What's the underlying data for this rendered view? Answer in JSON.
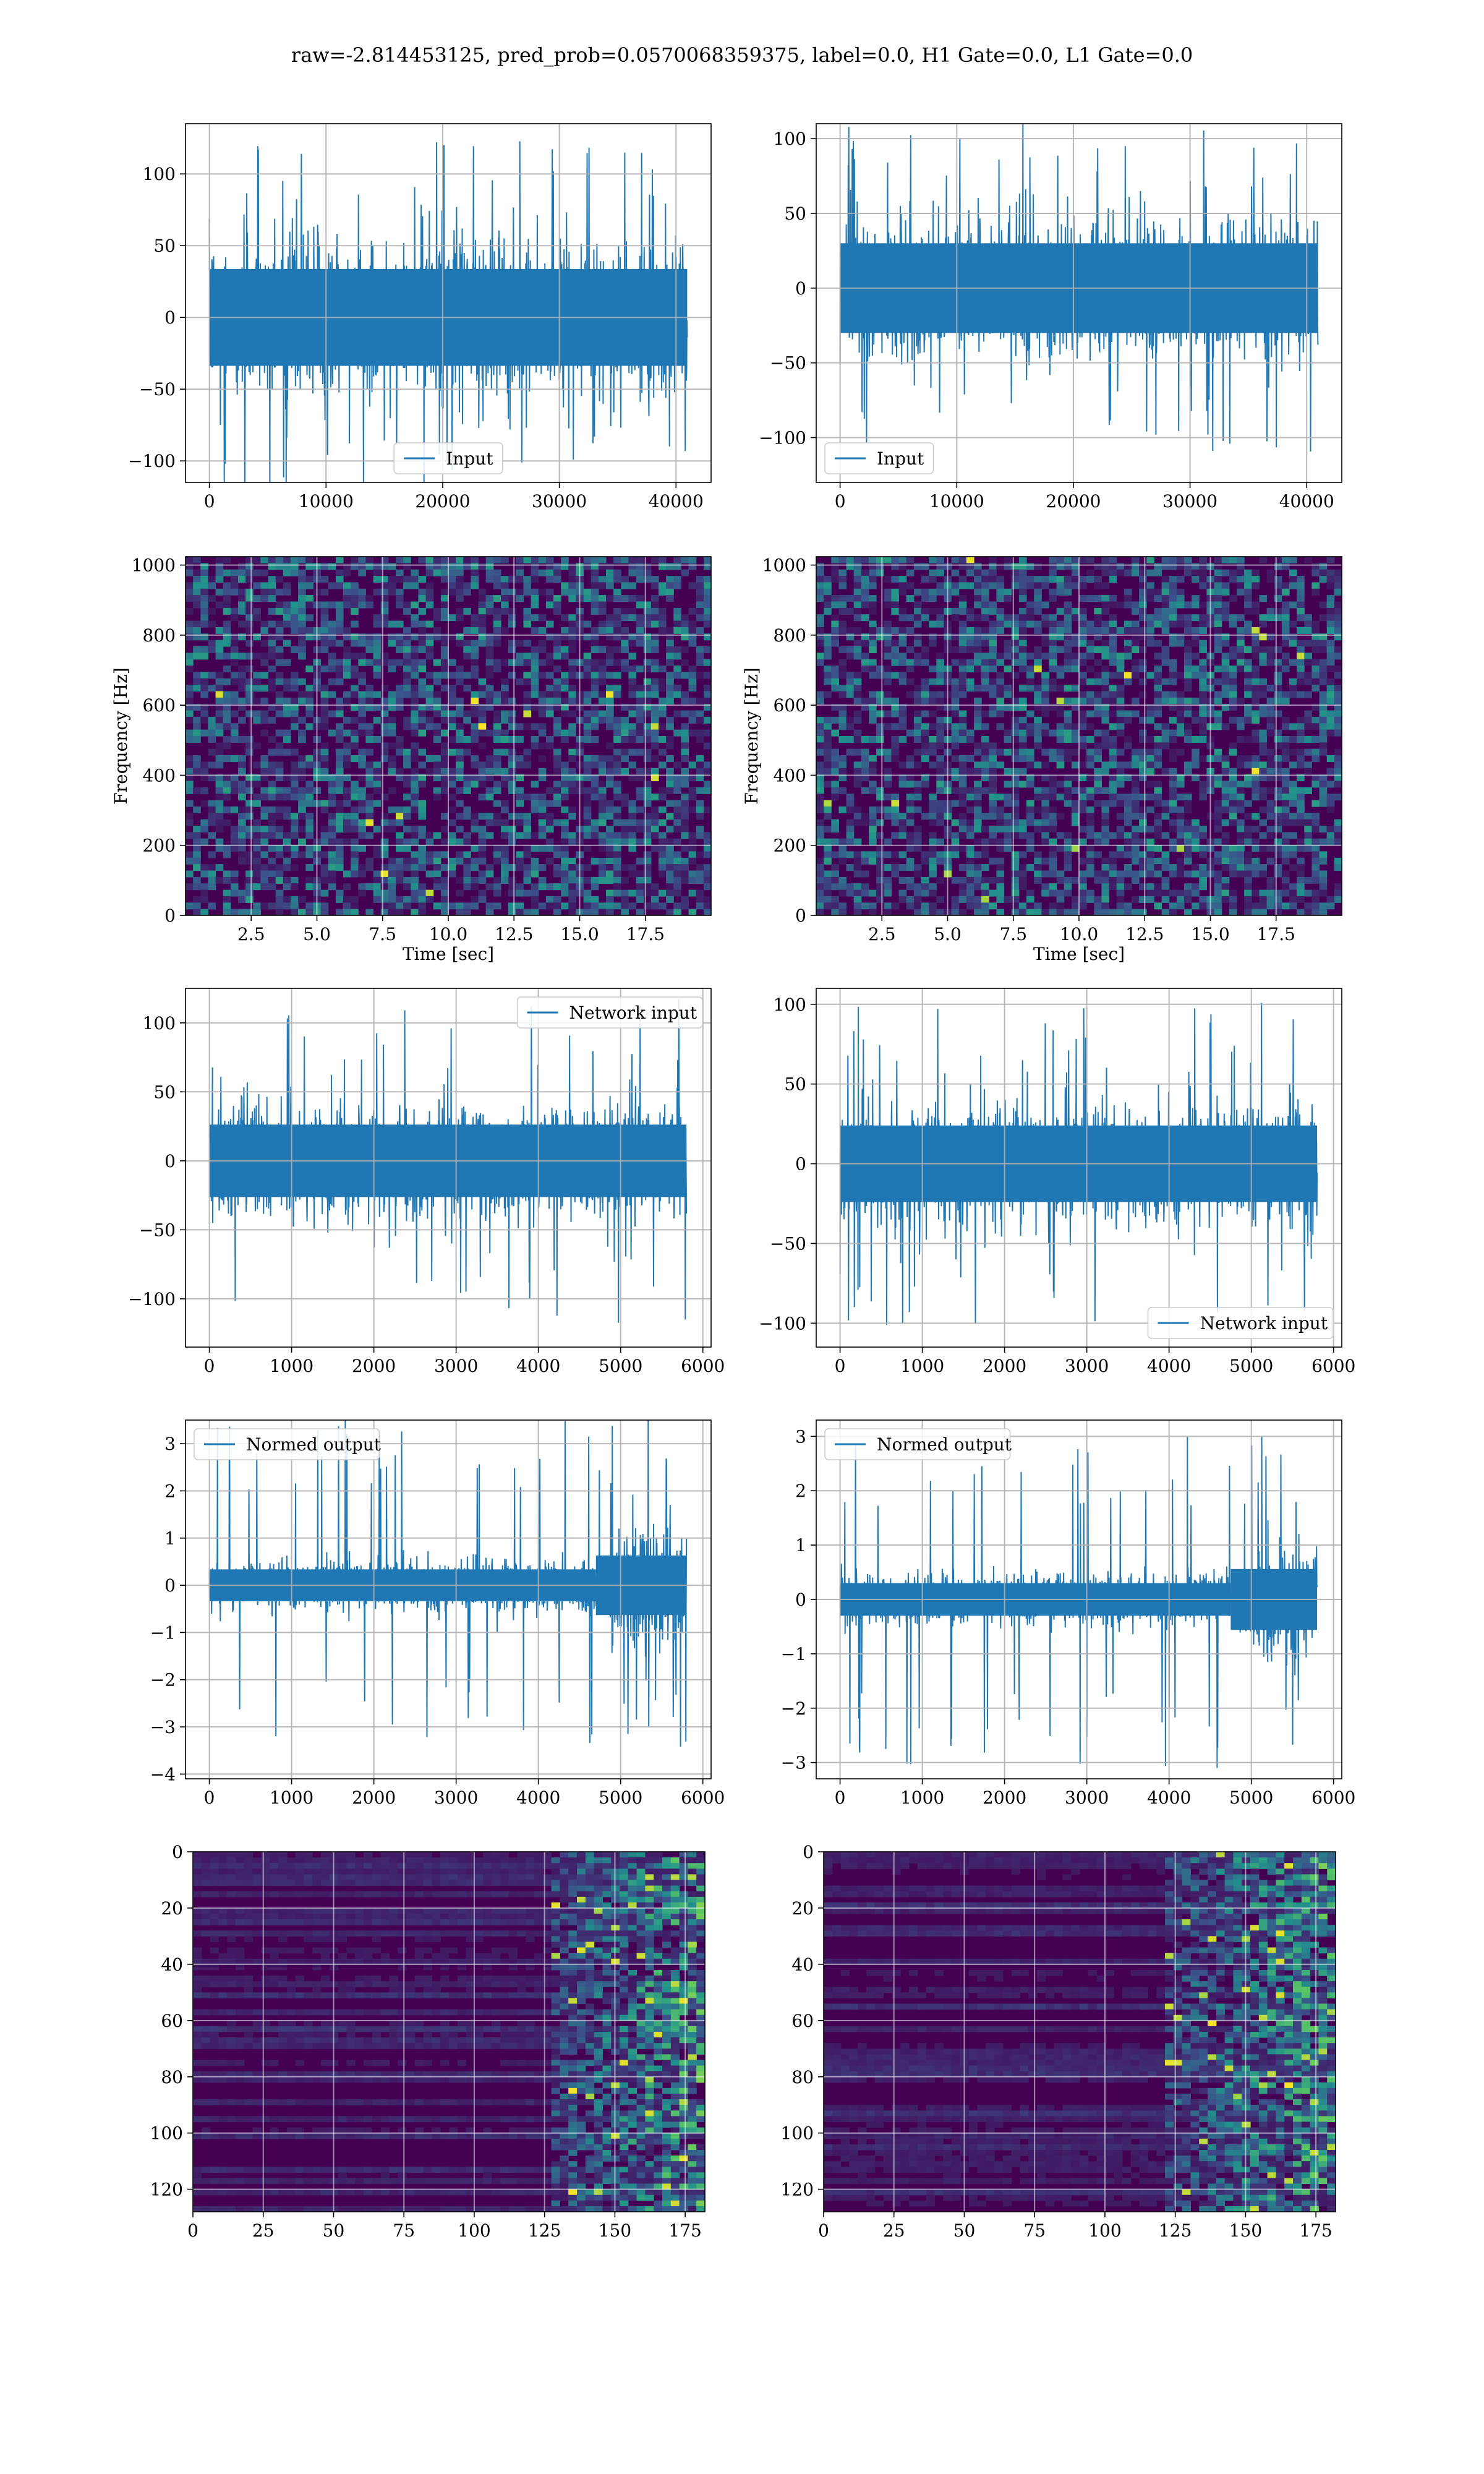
{
  "figure": {
    "suptitle": "raw=-2.814453125, pred_prob=0.0570068359375, label=0.0, H1 Gate=0.0, L1 Gate=0.0"
  },
  "colors": {
    "line": "#1f77b4",
    "grid": "#b0b0b0",
    "heat_low": "#440154",
    "heat_mid": "#21918c",
    "heat_high": "#fde725"
  },
  "chart_data": [
    {
      "id": "input-h1",
      "type": "line",
      "xlim": [
        -2048,
        43008
      ],
      "ylim": [
        -115,
        135
      ],
      "xticks": [
        0,
        10000,
        20000,
        30000,
        40000
      ],
      "yticks": [
        -100,
        -50,
        0,
        50,
        100
      ],
      "legend": {
        "label": "Input",
        "placement": "lower-center"
      },
      "x_range": [
        0,
        40960
      ],
      "envelope": {
        "typical": 45,
        "peak": 125
      },
      "grid": true
    },
    {
      "id": "input-l1",
      "type": "line",
      "xlim": [
        -2048,
        43008
      ],
      "ylim": [
        -130,
        110
      ],
      "xticks": [
        0,
        10000,
        20000,
        30000,
        40000
      ],
      "yticks": [
        -100,
        -50,
        0,
        50,
        100
      ],
      "legend": {
        "label": "Input",
        "placement": "lower-left"
      },
      "x_range": [
        0,
        40960
      ],
      "envelope": {
        "typical": 40,
        "peak": 110
      },
      "grid": true
    },
    {
      "id": "spec-h1",
      "type": "heatmap",
      "xlim": [
        0,
        20
      ],
      "ylim": [
        0,
        1024
      ],
      "xticks": [
        2.5,
        5.0,
        7.5,
        10.0,
        12.5,
        15.0,
        17.5
      ],
      "yticks": [
        0,
        200,
        400,
        600,
        800,
        1000
      ],
      "xlabel": "Time [sec]",
      "ylabel": "Frequency [Hz]",
      "grid": true
    },
    {
      "id": "spec-l1",
      "type": "heatmap",
      "xlim": [
        0,
        20
      ],
      "ylim": [
        0,
        1024
      ],
      "xticks": [
        2.5,
        5.0,
        7.5,
        10.0,
        12.5,
        15.0,
        17.5
      ],
      "yticks": [
        0,
        200,
        400,
        600,
        800,
        1000
      ],
      "xlabel": "Time [sec]",
      "ylabel": "Frequency [Hz]",
      "grid": true
    },
    {
      "id": "netinput-h1",
      "type": "line",
      "xlim": [
        -290,
        6100
      ],
      "ylim": [
        -135,
        125
      ],
      "xticks": [
        0,
        1000,
        2000,
        3000,
        4000,
        5000,
        6000
      ],
      "yticks": [
        -100,
        -50,
        0,
        50,
        100
      ],
      "legend": {
        "label": "Network input",
        "placement": "upper-right"
      },
      "x_range": [
        0,
        5800
      ],
      "envelope": {
        "typical": 35,
        "peak": 118
      },
      "grid": true
    },
    {
      "id": "netinput-l1",
      "type": "line",
      "xlim": [
        -290,
        6100
      ],
      "ylim": [
        -115,
        110
      ],
      "xticks": [
        0,
        1000,
        2000,
        3000,
        4000,
        5000,
        6000
      ],
      "yticks": [
        -100,
        -50,
        0,
        50,
        100
      ],
      "legend": {
        "label": "Network input",
        "placement": "lower-right"
      },
      "x_range": [
        0,
        5800
      ],
      "envelope": {
        "typical": 32,
        "peak": 102
      },
      "grid": true
    },
    {
      "id": "normed-h1",
      "type": "line",
      "xlim": [
        -290,
        6100
      ],
      "ylim": [
        -4.1,
        3.5
      ],
      "xticks": [
        0,
        1000,
        2000,
        3000,
        4000,
        5000,
        6000
      ],
      "yticks": [
        -4,
        -3,
        -2,
        -1,
        0,
        1,
        2,
        3
      ],
      "legend": {
        "label": "Normed output",
        "placement": "upper-left"
      },
      "x_range": [
        0,
        5800
      ],
      "envelope": {
        "typical": 0.45,
        "peak": 3.6,
        "burst_start": 4700,
        "burst_amp": 1.4
      },
      "grid": true
    },
    {
      "id": "normed-l1",
      "type": "line",
      "xlim": [
        -290,
        6100
      ],
      "ylim": [
        -3.3,
        3.3
      ],
      "xticks": [
        0,
        1000,
        2000,
        3000,
        4000,
        5000,
        6000
      ],
      "yticks": [
        -3,
        -2,
        -1,
        0,
        1,
        2,
        3
      ],
      "legend": {
        "label": "Normed output",
        "placement": "upper-left"
      },
      "x_range": [
        0,
        5800
      ],
      "envelope": {
        "typical": 0.4,
        "peak": 3.1,
        "burst_start": 4750,
        "burst_amp": 1.1
      },
      "grid": true
    },
    {
      "id": "features-h1",
      "type": "heatmap",
      "xlim": [
        0,
        182
      ],
      "ylim": [
        128,
        0
      ],
      "xticks": [
        0,
        25,
        50,
        75,
        100,
        125,
        150,
        175
      ],
      "yticks": [
        0,
        20,
        40,
        60,
        80,
        100,
        120
      ],
      "columns": 182,
      "rows": 128,
      "hot_from_column": 125,
      "grid": true
    },
    {
      "id": "features-l1",
      "type": "heatmap",
      "xlim": [
        0,
        182
      ],
      "ylim": [
        128,
        0
      ],
      "xticks": [
        0,
        25,
        50,
        75,
        100,
        125,
        150,
        175
      ],
      "yticks": [
        0,
        20,
        40,
        60,
        80,
        100,
        120
      ],
      "columns": 182,
      "rows": 128,
      "hot_from_column": 120,
      "grid": true
    }
  ]
}
